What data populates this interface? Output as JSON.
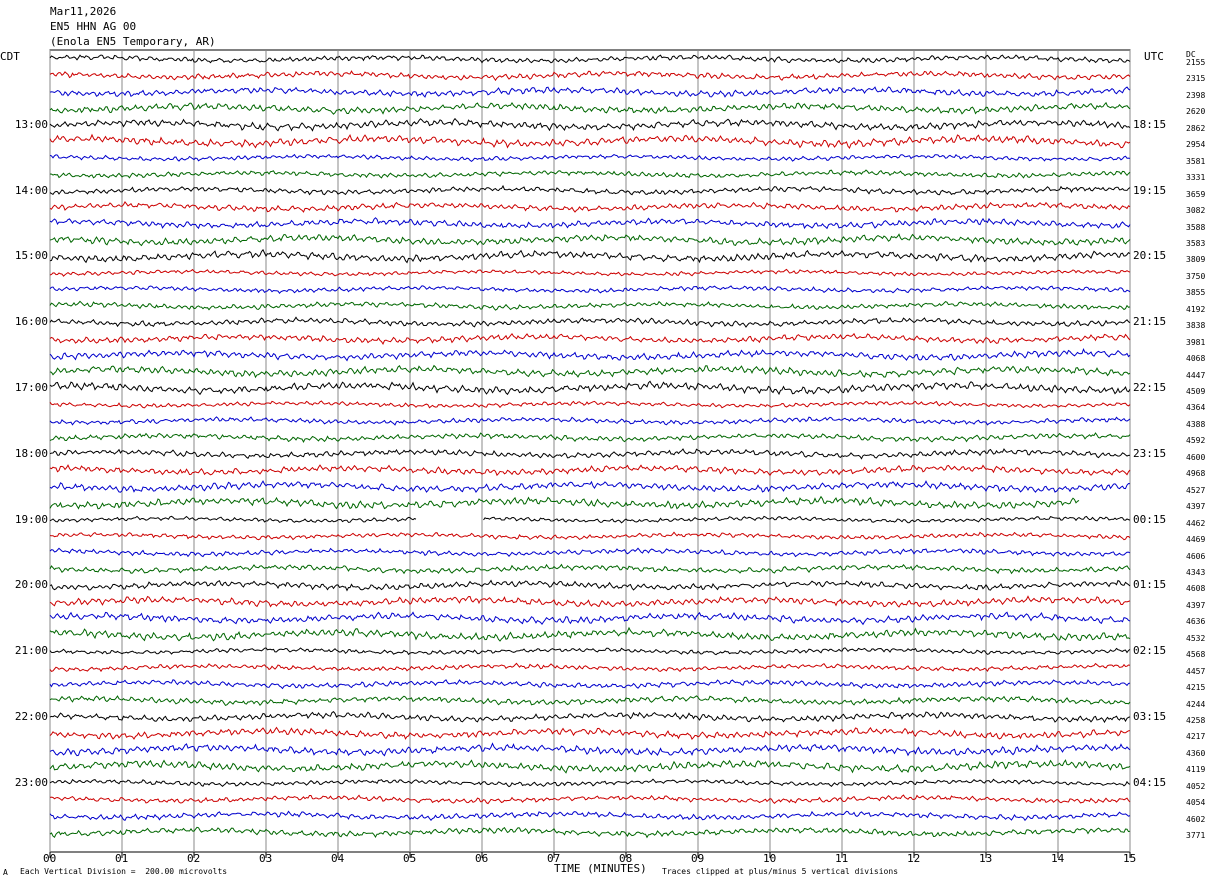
{
  "header": {
    "date": "Mar11,2026",
    "station": "EN5 HHN AG 00",
    "location": "(Enola EN5 Temporary, AR)"
  },
  "left_zone": "CDT",
  "right_zone": "UTC",
  "dc_label": "DC",
  "chart_data": {
    "type": "line",
    "title": "Mar11,2026 EN5 HHN AG 00 (Enola EN5 Temporary, AR)",
    "xlabel": "TIME (MINUTES)",
    "xlim": [
      0,
      15
    ],
    "x_ticks": [
      "00",
      "01",
      "02",
      "03",
      "04",
      "05",
      "06",
      "07",
      "08",
      "09",
      "10",
      "11",
      "12",
      "13",
      "14",
      "15"
    ],
    "grid": "vertical lines at each minute",
    "trace_minutes_per_line": 15,
    "line_colors": [
      "#000000",
      "#cc0000",
      "#0000cc",
      "#006600"
    ],
    "left_time_labels": [
      {
        "row": 4,
        "label": "13:00"
      },
      {
        "row": 8,
        "label": "14:00"
      },
      {
        "row": 12,
        "label": "15:00"
      },
      {
        "row": 16,
        "label": "16:00"
      },
      {
        "row": 20,
        "label": "17:00"
      },
      {
        "row": 24,
        "label": "18:00"
      },
      {
        "row": 28,
        "label": "19:00"
      },
      {
        "row": 32,
        "label": "20:00"
      },
      {
        "row": 36,
        "label": "21:00"
      },
      {
        "row": 40,
        "label": "22:00"
      },
      {
        "row": 44,
        "label": "23:00"
      }
    ],
    "right_time_labels": [
      {
        "row": 4,
        "label": "18:15"
      },
      {
        "row": 8,
        "label": "19:15"
      },
      {
        "row": 12,
        "label": "20:15"
      },
      {
        "row": 16,
        "label": "21:15"
      },
      {
        "row": 20,
        "label": "22:15"
      },
      {
        "row": 24,
        "label": "23:15"
      },
      {
        "row": 28,
        "label": "00:15"
      },
      {
        "row": 32,
        "label": "01:15"
      },
      {
        "row": 36,
        "label": "02:15"
      },
      {
        "row": 40,
        "label": "03:15"
      },
      {
        "row": 44,
        "label": "04:15"
      }
    ],
    "dc_offsets": [
      "2155",
      "2315",
      "2398",
      "2620",
      "2862",
      "2954",
      "3581",
      "3331",
      "3659",
      "3082",
      "3588",
      "3583",
      "3809",
      "3750",
      "3855",
      "4192",
      "3838",
      "3981",
      "4068",
      "4447",
      "4509",
      "4364",
      "4388",
      "4592",
      "4600",
      "4968",
      "4527",
      "4397",
      "4462",
      "4469",
      "4606",
      "4343",
      "4608",
      "4397",
      "4636",
      "4532",
      "4568",
      "4457",
      "4215",
      "4244",
      "4258",
      "4217",
      "4360",
      "4119",
      "4052",
      "4054",
      "4602",
      "3771"
    ],
    "gaps": [
      {
        "row": 27,
        "from_minute": 14.3,
        "to_minute": 15
      },
      {
        "row": 28,
        "from_minute": 5.1,
        "to_minute": 6.0
      }
    ]
  },
  "footer": {
    "scale_note": "Each Vertical Division =  200.00 microvolts",
    "corner_mark": "A",
    "x_axis_title": "TIME (MINUTES)",
    "clip_note": "Traces clipped at plus/minus 5 vertical divisions"
  }
}
